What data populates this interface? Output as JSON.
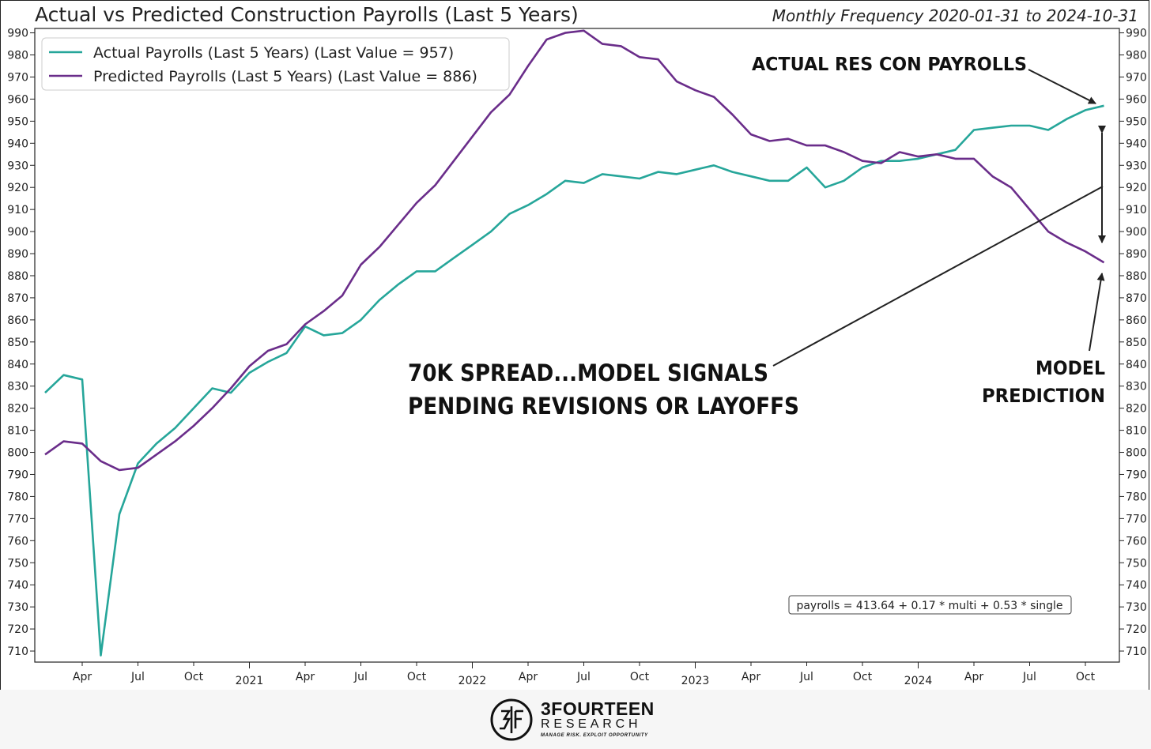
{
  "chart_data": {
    "type": "line",
    "title": "Actual vs Predicted Construction Payrolls (Last 5 Years)",
    "subtitle": "Monthly Frequency 2020-01-31 to 2024-10-31",
    "ylim": [
      705,
      992
    ],
    "y_ticks": [
      710,
      720,
      730,
      740,
      750,
      760,
      770,
      780,
      790,
      800,
      810,
      820,
      830,
      840,
      850,
      860,
      870,
      880,
      890,
      900,
      910,
      920,
      930,
      940,
      950,
      960,
      970,
      980,
      990
    ],
    "x_month_index_range": [
      0,
      58
    ],
    "x_ticks": [
      {
        "i": 2,
        "label": "Apr"
      },
      {
        "i": 5,
        "label": "Jul"
      },
      {
        "i": 8,
        "label": "Oct"
      },
      {
        "i": 11,
        "label": "2021"
      },
      {
        "i": 14,
        "label": "Apr"
      },
      {
        "i": 17,
        "label": "Jul"
      },
      {
        "i": 20,
        "label": "Oct"
      },
      {
        "i": 23,
        "label": "2022"
      },
      {
        "i": 26,
        "label": "Apr"
      },
      {
        "i": 29,
        "label": "Jul"
      },
      {
        "i": 32,
        "label": "Oct"
      },
      {
        "i": 35,
        "label": "2023"
      },
      {
        "i": 38,
        "label": "Apr"
      },
      {
        "i": 41,
        "label": "Jul"
      },
      {
        "i": 44,
        "label": "Oct"
      },
      {
        "i": 47,
        "label": "2024"
      },
      {
        "i": 50,
        "label": "Apr"
      },
      {
        "i": 53,
        "label": "Jul"
      },
      {
        "i": 56,
        "label": "Oct"
      }
    ],
    "series": [
      {
        "name": "Actual Payrolls (Last 5 Years) (Last Value = 957)",
        "color": "#26a69a",
        "values": [
          827,
          835,
          833,
          708,
          772,
          795,
          804,
          811,
          820,
          829,
          827,
          836,
          841,
          845,
          857,
          853,
          854,
          860,
          869,
          876,
          882,
          882,
          888,
          894,
          900,
          908,
          912,
          917,
          923,
          922,
          926,
          925,
          924,
          927,
          926,
          928,
          930,
          927,
          925,
          923,
          923,
          929,
          920,
          923,
          929,
          932,
          932,
          933,
          935,
          937,
          946,
          947,
          948,
          948,
          946,
          951,
          955,
          957
        ]
      },
      {
        "name": "Predicted Payrolls (Last 5 Years) (Last Value = 886)",
        "color": "#6a2d8a",
        "values": [
          799,
          805,
          804,
          796,
          792,
          793,
          799,
          805,
          812,
          820,
          829,
          839,
          846,
          849,
          858,
          864,
          871,
          885,
          893,
          903,
          913,
          921,
          932,
          943,
          954,
          962,
          975,
          987,
          990,
          991,
          985,
          984,
          979,
          978,
          968,
          964,
          961,
          953,
          944,
          941,
          942,
          939,
          939,
          936,
          932,
          931,
          936,
          934,
          935,
          933,
          933,
          925,
          920,
          910,
          900,
          895,
          891,
          886
        ]
      }
    ],
    "legend": {
      "placement": "top-left"
    },
    "annotations": [
      {
        "text": "ACTUAL RES CON PAYROLLS"
      },
      {
        "lines": [
          "70K SPREAD...MODEL SIGNALS",
          "PENDING REVISIONS OR LAYOFFS"
        ]
      },
      {
        "lines": [
          "MODEL",
          "PREDICTION"
        ]
      }
    ],
    "formula": "payrolls = 413.64 + 0.17 * multi + 0.53 * single"
  },
  "logo": {
    "name": "3FOURTEEN",
    "sub": "RESEARCH",
    "tagline": "MANAGE RISK. EXPLOIT OPPORTUNITY"
  },
  "colors": {
    "axis": "#222222",
    "background": "#ffffff"
  }
}
